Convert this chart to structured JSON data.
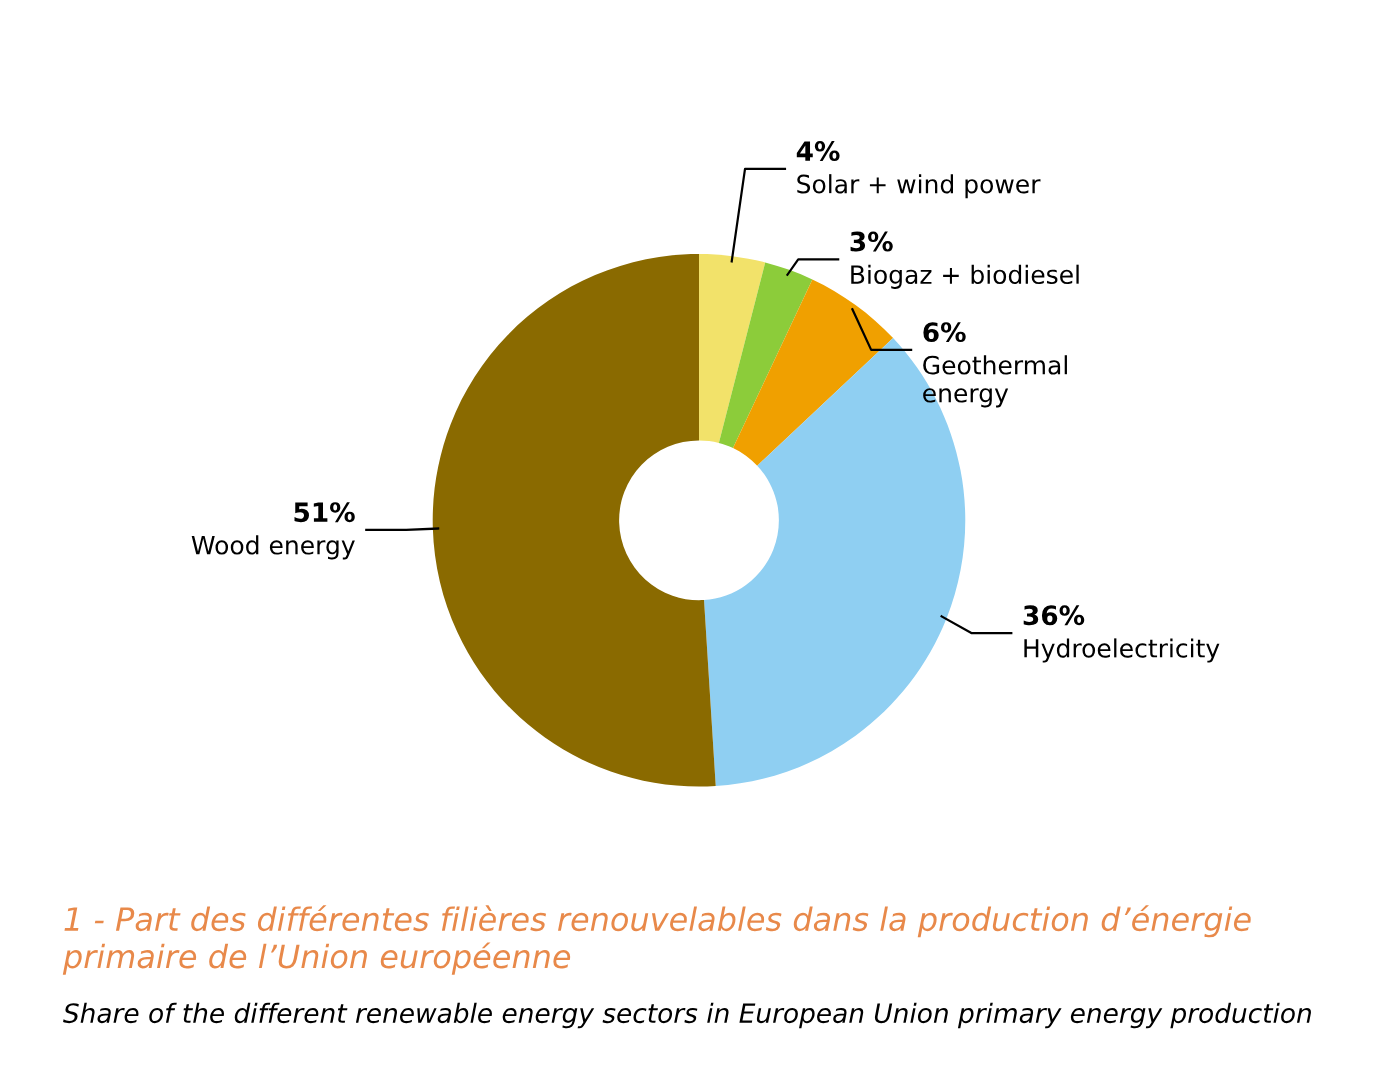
{
  "chart_data": {
    "type": "donut",
    "categories": [
      "Solar + wind power",
      "Biogaz + biodiesel",
      "Geothermal\nenergy",
      "Hydroelectricity",
      "Wood energy"
    ],
    "values": [
      4,
      3,
      6,
      36,
      51
    ],
    "colors": [
      "#f2e26a",
      "#8ccc3a",
      "#f0a000",
      "#8fcff2",
      "#8a6a00"
    ],
    "value_labels": [
      "4%",
      "3%",
      "6%",
      "36%",
      "51%"
    ],
    "title": "1 - Part des différentes filières renouvelables dans la production d’énergie primaire de l’Union européenne",
    "subtitle": "Share of the different renewable energy sectors in European Union primary energy production"
  }
}
